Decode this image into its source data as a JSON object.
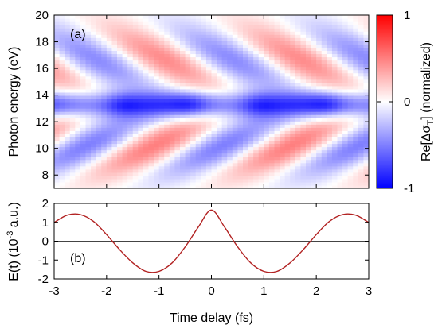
{
  "chart_data": [
    {
      "panel": "(a)",
      "type": "heatmap",
      "ylabel": "Photon energy (eV)",
      "xlim": [
        -3,
        3
      ],
      "ylim": [
        7,
        20
      ],
      "yticks": [
        8,
        10,
        12,
        14,
        16,
        18,
        20
      ],
      "colorbar": {
        "label": "Re[Δσ",
        "label_sub": "T",
        "label_end": "] (normalized)",
        "range": [
          -1,
          1
        ],
        "ticks": [
          1,
          0,
          -1
        ],
        "colors": {
          "negative": "#0000ff",
          "zero": "#ffffff",
          "positive": "#ff0000"
        }
      },
      "structure": {
        "central_band_energy_eV": 13.3,
        "central_band_value": -0.85,
        "central_band_dips_at_fs": [
          -1.7,
          -0.4,
          0.9,
          2.2
        ],
        "upper_fringe_band_eV": [
          14.5,
          19
        ],
        "lower_fringe_band_eV": [
          8,
          12.5
        ],
        "fringe_period_fs": 2.6
      }
    },
    {
      "panel": "(b)",
      "type": "line",
      "xlabel": "Time delay (fs)",
      "ylabel": "E(t) (10",
      "ylabel_sup": "-3",
      "ylabel_end": " a.u.)",
      "xlim": [
        -3,
        3
      ],
      "ylim": [
        -2,
        2
      ],
      "xticks": [
        -3,
        -2,
        -1,
        0,
        1,
        2,
        3
      ],
      "yticks": [
        2,
        1,
        0,
        -1,
        -2
      ],
      "line_color": "#b22222",
      "x": [
        -3.0,
        -2.75,
        -2.5,
        -2.25,
        -2.0,
        -1.75,
        -1.5,
        -1.25,
        -1.0,
        -0.75,
        -0.5,
        -0.25,
        0.0,
        0.25,
        0.5,
        0.75,
        1.0,
        1.25,
        1.5,
        1.75,
        2.0,
        2.25,
        2.5,
        2.75,
        3.0
      ],
      "y": [
        0.99,
        1.38,
        1.41,
        1.05,
        0.35,
        -0.45,
        -1.15,
        -1.6,
        -1.6,
        -1.15,
        -0.3,
        0.75,
        1.65,
        0.75,
        -0.3,
        -1.15,
        -1.6,
        -1.6,
        -1.15,
        -0.45,
        0.35,
        1.05,
        1.41,
        1.38,
        0.99
      ]
    }
  ]
}
